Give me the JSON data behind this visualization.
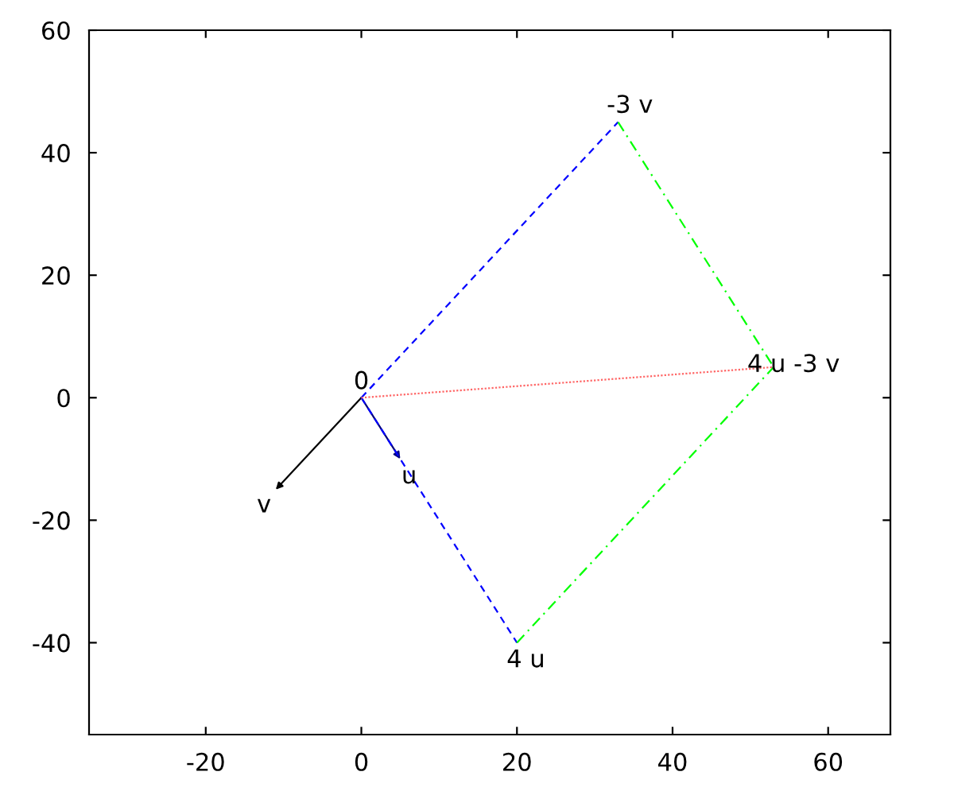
{
  "chart_data": {
    "type": "line",
    "series": [
      {
        "color": "#000080",
        "line_style": "solid",
        "x": [
          0,
          5
        ],
        "values": [
          0,
          -10
        ]
      },
      {
        "color": "#000000",
        "line_style": "solid",
        "x": [
          0,
          -11
        ],
        "values": [
          0,
          -15
        ]
      },
      {
        "color": "#0000ff",
        "line_style": "dashed",
        "x": [
          0,
          33
        ],
        "values": [
          0,
          45
        ]
      },
      {
        "color": "#0000ff",
        "line_style": "dashed",
        "x": [
          0,
          20
        ],
        "values": [
          0,
          -40
        ]
      },
      {
        "color": "#00ff00",
        "line_style": "dashdot",
        "x": [
          33,
          53
        ],
        "values": [
          45,
          5
        ]
      },
      {
        "color": "#00ff00",
        "line_style": "dashdot",
        "x": [
          20,
          53
        ],
        "values": [
          -40,
          5
        ]
      },
      {
        "color": "#ff6666",
        "line_style": "dotted",
        "x": [
          0,
          53
        ],
        "values": [
          0,
          5
        ]
      }
    ],
    "annotations": [
      {
        "text": "0",
        "x": 0,
        "y": 0
      },
      {
        "text": "u",
        "x": 5,
        "y": -10
      },
      {
        "text": "v",
        "x": -11,
        "y": -15
      },
      {
        "text": "4 u",
        "x": 20,
        "y": -40
      },
      {
        "text": "-3 v",
        "x": 33,
        "y": 45
      },
      {
        "text": "4 u -3 v",
        "x": 53,
        "y": 5
      }
    ],
    "xlim": [
      -35,
      68
    ],
    "ylim": [
      -55,
      60
    ],
    "xticks": [
      -20,
      0,
      20,
      40,
      60
    ],
    "yticks": [
      -40,
      -20,
      0,
      20,
      40,
      60
    ],
    "grid": false,
    "legend": false
  }
}
